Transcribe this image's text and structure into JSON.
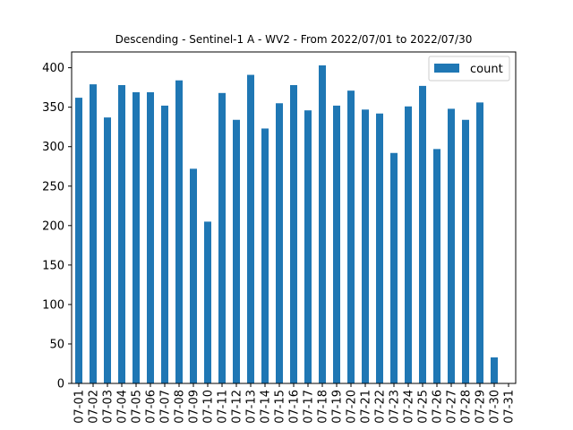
{
  "chart_data": {
    "type": "bar",
    "title": "Descending - Sentinel-1 A - WV2 - From 2022/07/01 to 2022/07/30",
    "xlabel": "",
    "ylabel": "",
    "ylim": [
      0,
      420
    ],
    "yticks": [
      0,
      50,
      100,
      150,
      200,
      250,
      300,
      350,
      400
    ],
    "categories": [
      "07-01",
      "07-02",
      "07-03",
      "07-04",
      "07-05",
      "07-06",
      "07-07",
      "07-08",
      "07-09",
      "07-10",
      "07-11",
      "07-12",
      "07-13",
      "07-14",
      "07-15",
      "07-16",
      "07-17",
      "07-18",
      "07-19",
      "07-20",
      "07-21",
      "07-22",
      "07-23",
      "07-24",
      "07-25",
      "07-26",
      "07-27",
      "07-28",
      "07-29",
      "07-30",
      "07-31"
    ],
    "series": [
      {
        "name": "count",
        "color": "#1f77b4",
        "values": [
          362,
          379,
          337,
          378,
          369,
          369,
          352,
          384,
          272,
          205,
          368,
          334,
          391,
          323,
          355,
          378,
          346,
          403,
          352,
          371,
          347,
          342,
          292,
          351,
          377,
          297,
          348,
          334,
          356,
          33,
          0
        ]
      }
    ],
    "legend_position": "top-right",
    "grid": false
  }
}
